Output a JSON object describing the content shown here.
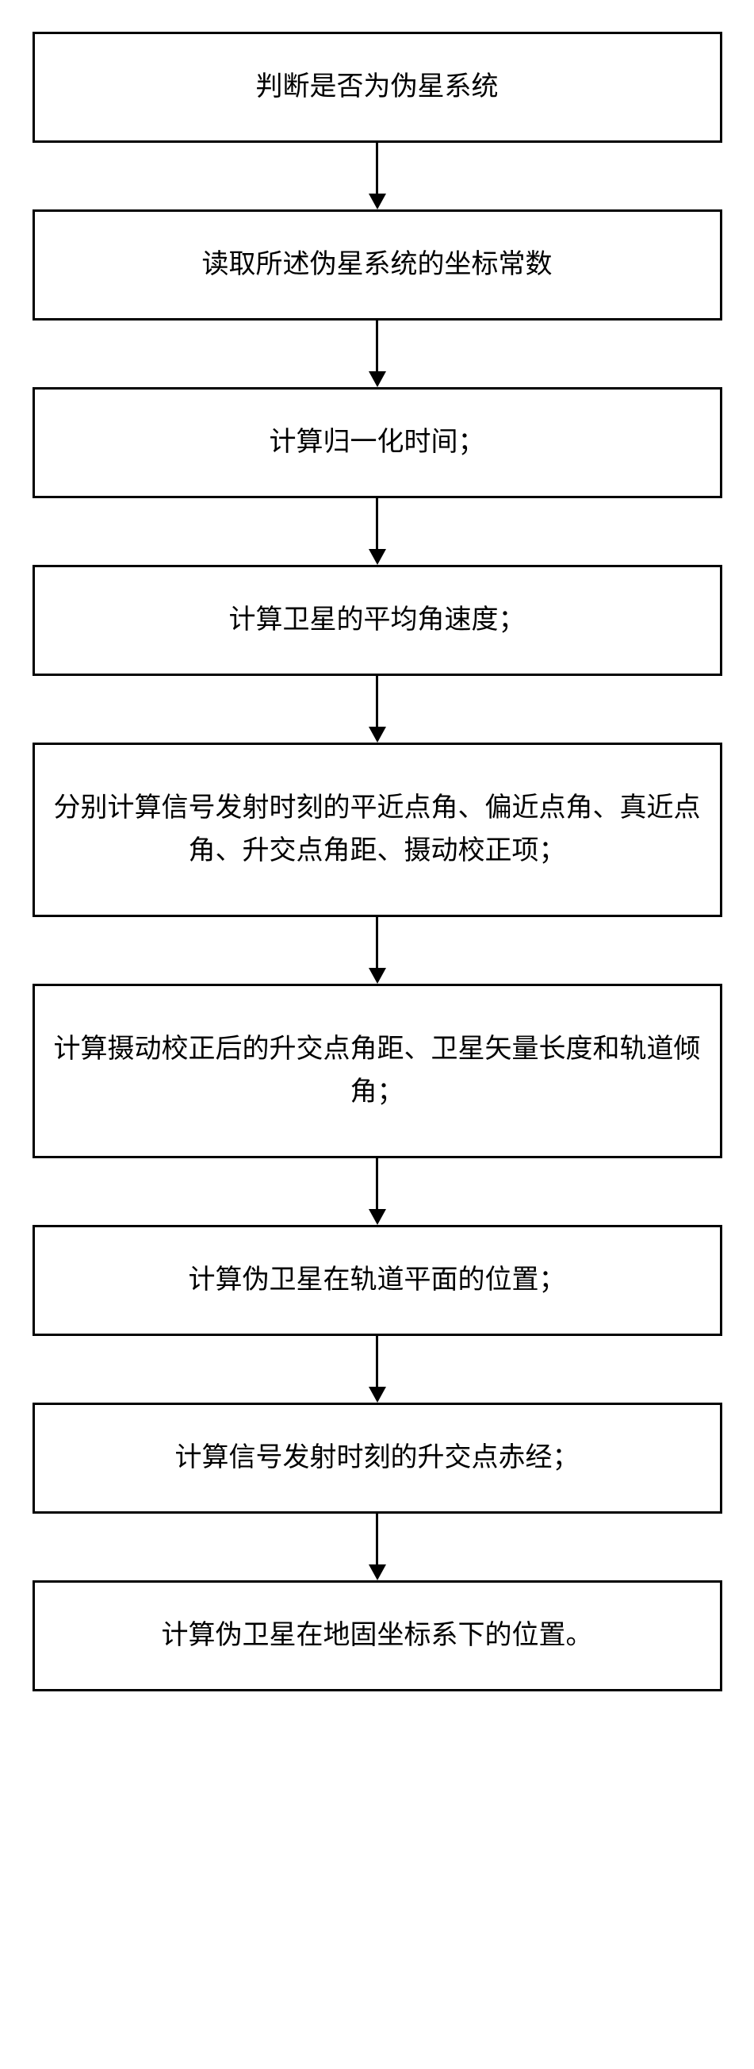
{
  "flowchart": {
    "type": "flowchart",
    "direction": "vertical",
    "box_border_color": "#000000",
    "box_border_width": 3,
    "box_background": "#ffffff",
    "text_color": "#000000",
    "font_size_pt": 26,
    "font_family": "SimSun",
    "arrow_color": "#000000",
    "arrow_line_width": 3,
    "arrow_head_size": 20,
    "box_spacing": 84,
    "steps": [
      {
        "id": "step1",
        "label": "判断是否为伪星系统",
        "tall": false
      },
      {
        "id": "step2",
        "label": "读取所述伪星系统的坐标常数",
        "tall": false
      },
      {
        "id": "step3",
        "label": "计算归一化时间；",
        "tall": false
      },
      {
        "id": "step4",
        "label": "计算卫星的平均角速度；",
        "tall": false
      },
      {
        "id": "step5",
        "label": "分别计算信号发射时刻的平近点角、偏近点角、真近点角、升交点角距、摄动校正项；",
        "tall": true
      },
      {
        "id": "step6",
        "label": "计算摄动校正后的升交点角距、卫星矢量长度和轨道倾角；",
        "tall": true
      },
      {
        "id": "step7",
        "label": "计算伪卫星在轨道平面的位置；",
        "tall": false
      },
      {
        "id": "step8",
        "label": "计算信号发射时刻的升交点赤经；",
        "tall": false
      },
      {
        "id": "step9",
        "label": "计算伪卫星在地固坐标系下的位置。",
        "tall": false
      }
    ]
  }
}
